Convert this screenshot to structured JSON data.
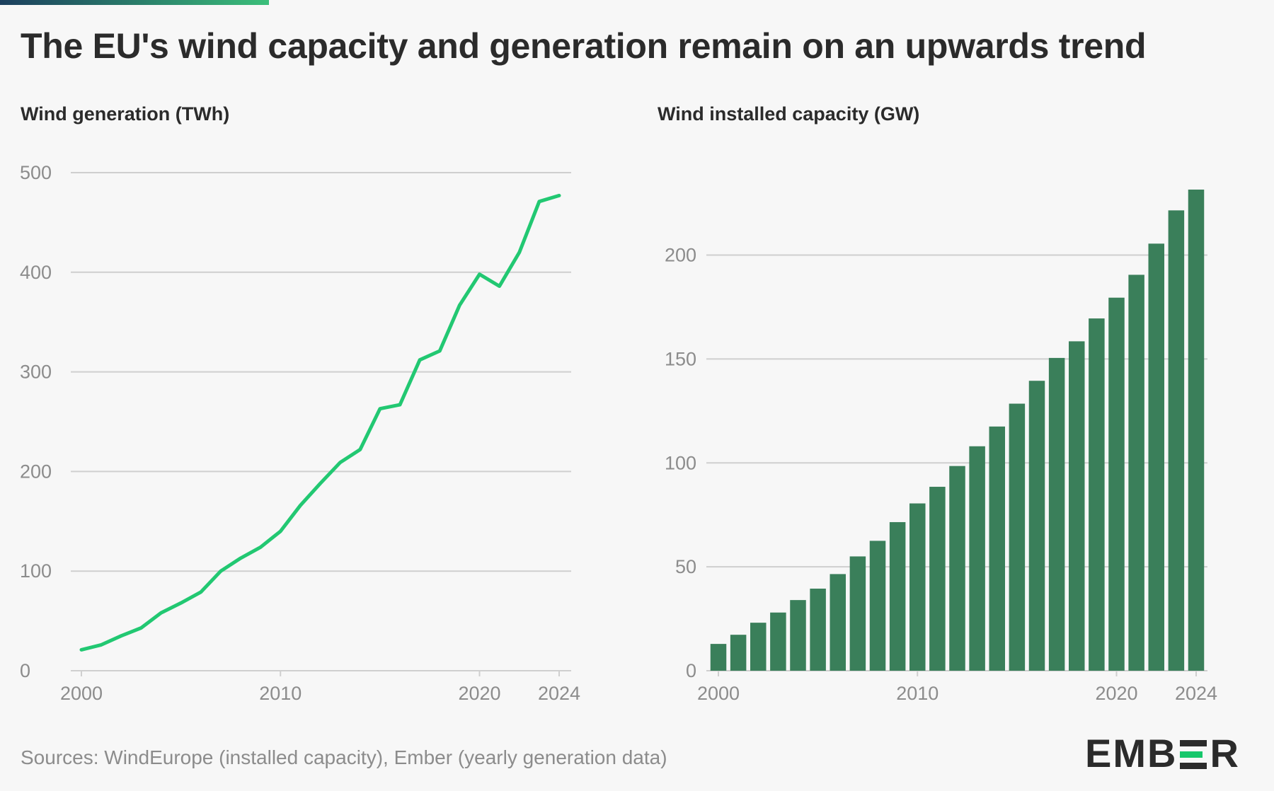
{
  "title": "The EU's wind capacity and generation remain on an upwards trend",
  "source": "Sources: WindEurope (installed capacity), Ember (yearly generation data)",
  "logo": {
    "text_left": "EMB",
    "text_right": "R",
    "mid_color": "#17c76b"
  },
  "colors": {
    "line": "#22c872",
    "bars": "#3a7f5a",
    "grid": "#cfcfcf",
    "axis_text": "#8c8c8c"
  },
  "chart_data": [
    {
      "type": "line",
      "title": "Wind generation (TWh)",
      "xlabel": "",
      "ylabel": "",
      "x": [
        2000,
        2001,
        2002,
        2003,
        2004,
        2005,
        2006,
        2007,
        2008,
        2009,
        2010,
        2011,
        2012,
        2013,
        2014,
        2015,
        2016,
        2017,
        2018,
        2019,
        2020,
        2021,
        2022,
        2023,
        2024
      ],
      "values": [
        21,
        26,
        35,
        43,
        58,
        68,
        79,
        100,
        113,
        124,
        140,
        166,
        188,
        209,
        222,
        263,
        267,
        312,
        321,
        367,
        398,
        386,
        420,
        471,
        477
      ],
      "ylim": [
        0,
        500
      ],
      "yticks": [
        0,
        100,
        200,
        300,
        400,
        500
      ],
      "xticks": [
        2000,
        2010,
        2020,
        2024
      ],
      "grid": true
    },
    {
      "type": "bar",
      "title": "Wind installed capacity (GW)",
      "xlabel": "",
      "ylabel": "",
      "x": [
        2000,
        2001,
        2002,
        2003,
        2004,
        2005,
        2006,
        2007,
        2008,
        2009,
        2010,
        2011,
        2012,
        2013,
        2014,
        2015,
        2016,
        2017,
        2018,
        2019,
        2020,
        2021,
        2022,
        2023,
        2024
      ],
      "values": [
        12.9,
        17.3,
        23.1,
        28.0,
        34.0,
        39.5,
        46.5,
        55.0,
        62.5,
        71.5,
        80.5,
        88.5,
        98.5,
        108,
        117.5,
        128.5,
        139.5,
        150.5,
        158.5,
        169.5,
        179.5,
        190.5,
        205.5,
        221.5,
        231.5
      ],
      "ylim": [
        0,
        240
      ],
      "yticks": [
        0,
        50,
        100,
        150,
        200
      ],
      "xticks": [
        2000,
        2010,
        2020,
        2024
      ],
      "grid": true
    }
  ]
}
